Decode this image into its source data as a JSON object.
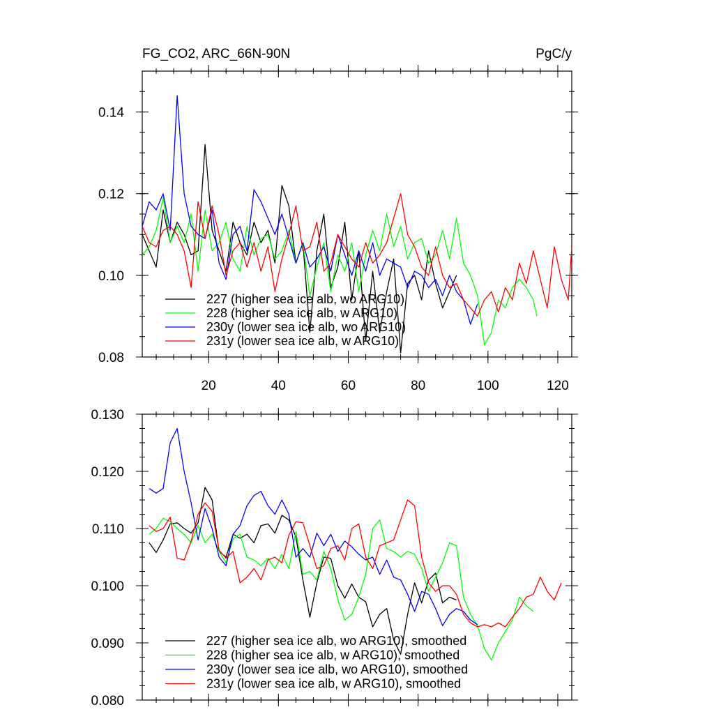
{
  "chart_data": [
    {
      "type": "line",
      "title": "FG_CO2, ARC_66N-90N",
      "units": "PgC/y",
      "xlim": [
        1,
        124
      ],
      "ylim": [
        0.08,
        0.15
      ],
      "xticks": [
        20,
        40,
        60,
        80,
        100,
        120
      ],
      "yticks": [
        0.08,
        0.1,
        0.12,
        0.14
      ],
      "ytick_labels": [
        "0.08",
        "0.10",
        "0.12",
        "0.14"
      ],
      "legend_position": "bottom-left",
      "grid": false,
      "series": [
        {
          "name": "227 (higher sea ice alb, wo ARG10)",
          "color": "#000000",
          "x": [
            1,
            3,
            5,
            7,
            9,
            11,
            13,
            15,
            17,
            19,
            21,
            23,
            25,
            27,
            29,
            31,
            33,
            35,
            37,
            39,
            41,
            43,
            45,
            47,
            49,
            51,
            53,
            55,
            57,
            59,
            61,
            63,
            65,
            67,
            69,
            71,
            73,
            75,
            77,
            79,
            81,
            83,
            85,
            87,
            89,
            91
          ],
          "y": [
            0.11,
            0.106,
            0.102,
            0.116,
            0.108,
            0.113,
            0.11,
            0.105,
            0.106,
            0.132,
            0.111,
            0.106,
            0.101,
            0.113,
            0.108,
            0.105,
            0.113,
            0.108,
            0.111,
            0.103,
            0.122,
            0.117,
            0.103,
            0.108,
            0.086,
            0.106,
            0.115,
            0.097,
            0.102,
            0.113,
            0.094,
            0.106,
            0.084,
            0.101,
            0.086,
            0.096,
            0.104,
            0.081,
            0.098,
            0.1,
            0.094,
            0.106,
            0.098,
            0.092,
            0.096,
            0.1
          ]
        },
        {
          "name": "228 (higher sea ice alb, w ARG10)",
          "color": "#00ff00",
          "x": [
            1,
            3,
            5,
            7,
            9,
            11,
            13,
            15,
            17,
            19,
            21,
            23,
            25,
            27,
            29,
            31,
            33,
            35,
            37,
            39,
            41,
            43,
            45,
            47,
            49,
            51,
            53,
            55,
            57,
            59,
            61,
            63,
            65,
            67,
            69,
            71,
            73,
            75,
            77,
            79,
            81,
            83,
            85,
            87,
            89,
            91,
            93,
            95,
            97,
            99,
            101,
            103,
            105,
            107,
            109,
            111,
            113,
            114
          ],
          "y": [
            0.105,
            0.107,
            0.111,
            0.119,
            0.108,
            0.112,
            0.108,
            0.115,
            0.101,
            0.116,
            0.106,
            0.108,
            0.113,
            0.104,
            0.101,
            0.112,
            0.105,
            0.109,
            0.11,
            0.104,
            0.106,
            0.111,
            0.103,
            0.108,
            0.095,
            0.102,
            0.108,
            0.096,
            0.105,
            0.101,
            0.108,
            0.096,
            0.105,
            0.111,
            0.106,
            0.115,
            0.107,
            0.112,
            0.104,
            0.108,
            0.109,
            0.103,
            0.105,
            0.111,
            0.104,
            0.114,
            0.103,
            0.1,
            0.095,
            0.083,
            0.086,
            0.094,
            0.092,
            0.097,
            0.099,
            0.097,
            0.094,
            0.09
          ]
        },
        {
          "name": "230y (lower sea ice alb, wo ARG10)",
          "color": "#0000ff",
          "x": [
            1,
            3,
            5,
            7,
            9,
            11,
            13,
            15,
            17,
            19,
            21,
            23,
            25,
            27,
            29,
            31,
            33,
            35,
            37,
            39,
            41,
            43,
            45,
            47,
            49,
            51,
            53,
            55,
            57,
            59,
            61,
            63,
            65,
            67,
            69,
            71,
            73,
            75,
            77,
            79,
            81,
            83,
            85,
            87,
            89,
            91,
            93,
            95,
            97
          ],
          "y": [
            0.112,
            0.118,
            0.116,
            0.12,
            0.111,
            0.144,
            0.12,
            0.112,
            0.11,
            0.109,
            0.116,
            0.103,
            0.099,
            0.11,
            0.112,
            0.106,
            0.121,
            0.118,
            0.114,
            0.11,
            0.115,
            0.109,
            0.103,
            0.108,
            0.102,
            0.104,
            0.107,
            0.101,
            0.11,
            0.105,
            0.1,
            0.106,
            0.101,
            0.108,
            0.1,
            0.104,
            0.103,
            0.102,
            0.097,
            0.101,
            0.1,
            0.097,
            0.099,
            0.095,
            0.1,
            0.096,
            0.094,
            0.088,
            0.093
          ]
        },
        {
          "name": "231y (lower sea ice alb, w ARG10)",
          "color": "#ff0000",
          "x": [
            1,
            3,
            5,
            7,
            9,
            11,
            13,
            15,
            17,
            19,
            21,
            23,
            25,
            27,
            29,
            31,
            33,
            35,
            37,
            39,
            41,
            43,
            45,
            47,
            49,
            51,
            53,
            55,
            57,
            59,
            61,
            63,
            65,
            67,
            69,
            71,
            73,
            75,
            77,
            79,
            81,
            83,
            85,
            87,
            89,
            91,
            93,
            95,
            97,
            99,
            101,
            103,
            105,
            107,
            109,
            111,
            113,
            115,
            117,
            119,
            121,
            123,
            124
          ],
          "y": [
            0.112,
            0.108,
            0.107,
            0.111,
            0.112,
            0.11,
            0.106,
            0.097,
            0.118,
            0.109,
            0.117,
            0.11,
            0.1,
            0.106,
            0.108,
            0.102,
            0.108,
            0.101,
            0.107,
            0.096,
            0.104,
            0.11,
            0.117,
            0.106,
            0.107,
            0.113,
            0.101,
            0.103,
            0.11,
            0.107,
            0.104,
            0.102,
            0.108,
            0.103,
            0.105,
            0.108,
            0.114,
            0.12,
            0.11,
            0.107,
            0.102,
            0.1,
            0.107,
            0.1,
            0.097,
            0.098,
            0.094,
            0.092,
            0.09,
            0.094,
            0.096,
            0.091,
            0.097,
            0.094,
            0.103,
            0.098,
            0.106,
            0.099,
            0.092,
            0.107,
            0.099,
            0.094,
            0.107
          ]
        }
      ]
    },
    {
      "type": "line",
      "xlim": [
        1,
        124
      ],
      "ylim": [
        0.08,
        0.13
      ],
      "yticks": [
        0.08,
        0.09,
        0.1,
        0.11,
        0.12,
        0.13
      ],
      "ytick_labels": [
        "0.080",
        "0.090",
        "0.100",
        "0.110",
        "0.120",
        "0.130"
      ],
      "legend_position": "bottom-left",
      "grid": false,
      "series": [
        {
          "name": "227 (higher sea ice alb, wo ARG10), smoothed",
          "color": "#000000",
          "x": [
            3,
            5,
            7,
            9,
            11,
            13,
            15,
            17,
            19,
            21,
            23,
            25,
            27,
            29,
            31,
            33,
            35,
            37,
            39,
            41,
            43,
            45,
            47,
            49,
            51,
            53,
            55,
            57,
            59,
            61,
            63,
            65,
            67,
            69,
            71,
            73,
            75,
            77,
            79,
            81,
            83,
            85,
            87,
            89,
            91
          ],
          "y": [
            0.1075,
            0.1058,
            0.108,
            0.1108,
            0.111,
            0.11,
            0.1092,
            0.111,
            0.1172,
            0.115,
            0.106,
            0.105,
            0.109,
            0.1083,
            0.109,
            0.1075,
            0.1105,
            0.1108,
            0.1092,
            0.1123,
            0.1115,
            0.1085,
            0.101,
            0.0945,
            0.1005,
            0.105,
            0.1048,
            0.1,
            0.0978,
            0.1003,
            0.098,
            0.0972,
            0.0928,
            0.095,
            0.096,
            0.0905,
            0.088,
            0.095,
            0.1005,
            0.097,
            0.101,
            0.1022,
            0.097,
            0.098,
            0.0975
          ]
        },
        {
          "name": "228 (higher sea ice alb, w ARG10), smoothed",
          "color": "#00ff00",
          "x": [
            3,
            5,
            7,
            9,
            11,
            13,
            15,
            17,
            19,
            21,
            23,
            25,
            27,
            29,
            31,
            33,
            35,
            37,
            39,
            41,
            43,
            45,
            47,
            49,
            51,
            53,
            55,
            57,
            59,
            61,
            63,
            65,
            67,
            69,
            71,
            73,
            75,
            77,
            79,
            81,
            83,
            85,
            87,
            89,
            91,
            93,
            95,
            97,
            99,
            101,
            103,
            105,
            107,
            109,
            111,
            113
          ],
          "y": [
            0.109,
            0.11,
            0.1118,
            0.1112,
            0.11,
            0.109,
            0.1075,
            0.1105,
            0.1075,
            0.109,
            0.106,
            0.104,
            0.1082,
            0.109,
            0.105,
            0.1045,
            0.1035,
            0.1048,
            0.103,
            0.1055,
            0.103,
            0.1095,
            0.102,
            0.1025,
            0.101,
            0.106,
            0.103,
            0.0975,
            0.094,
            0.095,
            0.098,
            0.102,
            0.11,
            0.1115,
            0.1065,
            0.106,
            0.105,
            0.106,
            0.1055,
            0.103,
            0.099,
            0.1015,
            0.104,
            0.1075,
            0.107,
            0.098,
            0.095,
            0.093,
            0.089,
            0.087,
            0.09,
            0.092,
            0.094,
            0.098,
            0.0965,
            0.0955
          ]
        },
        {
          "name": "230y (lower sea ice alb, wo ARG10), smoothed",
          "color": "#0000ff",
          "x": [
            3,
            5,
            7,
            9,
            11,
            13,
            15,
            17,
            19,
            21,
            23,
            25,
            27,
            29,
            31,
            33,
            35,
            37,
            39,
            41,
            43,
            45,
            47,
            49,
            51,
            53,
            55,
            57,
            59,
            61,
            63,
            65,
            67,
            69,
            71,
            73,
            75,
            77,
            79,
            81,
            83,
            85,
            87,
            89,
            91,
            93,
            95,
            97
          ],
          "y": [
            0.117,
            0.1162,
            0.117,
            0.125,
            0.1275,
            0.12,
            0.1145,
            0.108,
            0.1135,
            0.11,
            0.105,
            0.1035,
            0.109,
            0.1105,
            0.114,
            0.1158,
            0.1165,
            0.114,
            0.1125,
            0.115,
            0.1125,
            0.105,
            0.1065,
            0.105,
            0.1092,
            0.107,
            0.109,
            0.106,
            0.1078,
            0.1068,
            0.1055,
            0.1045,
            0.105,
            0.102,
            0.1045,
            0.1015,
            0.101,
            0.0985,
            0.0955,
            0.099,
            0.0985,
            0.096,
            0.093,
            0.095,
            0.096,
            0.0955,
            0.094,
            0.0932
          ]
        },
        {
          "name": "231y (lower sea ice alb, w ARG10), smoothed",
          "color": "#ff0000",
          "x": [
            3,
            5,
            7,
            9,
            11,
            13,
            15,
            17,
            19,
            21,
            23,
            25,
            27,
            29,
            31,
            33,
            35,
            37,
            39,
            41,
            43,
            45,
            47,
            49,
            51,
            53,
            55,
            57,
            59,
            61,
            63,
            65,
            67,
            69,
            71,
            73,
            75,
            77,
            79,
            81,
            83,
            85,
            87,
            89,
            91,
            93,
            95,
            97,
            99,
            101,
            103,
            105,
            107,
            109,
            111,
            113,
            115,
            117,
            119,
            121
          ],
          "y": [
            0.1105,
            0.1095,
            0.11,
            0.112,
            0.1048,
            0.1045,
            0.1078,
            0.1125,
            0.1145,
            0.113,
            0.1062,
            0.1048,
            0.106,
            0.1005,
            0.1015,
            0.103,
            0.101,
            0.1045,
            0.105,
            0.104,
            0.1088,
            0.1112,
            0.111,
            0.107,
            0.103,
            0.1035,
            0.1065,
            0.107,
            0.1045,
            0.11,
            0.1108,
            0.105,
            0.103,
            0.107,
            0.1075,
            0.108,
            0.1115,
            0.115,
            0.114,
            0.105,
            0.1005,
            0.099,
            0.1,
            0.1,
            0.0985,
            0.095,
            0.0935,
            0.0928,
            0.0932,
            0.0928,
            0.0935,
            0.0928,
            0.0945,
            0.096,
            0.098,
            0.0985,
            0.1015,
            0.099,
            0.0975,
            0.1005
          ]
        }
      ]
    }
  ]
}
